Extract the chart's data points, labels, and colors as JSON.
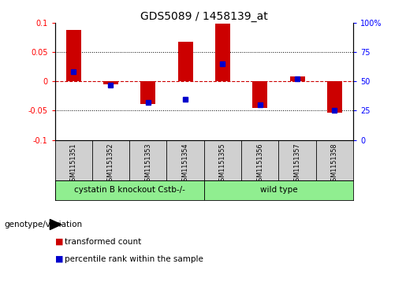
{
  "title": "GDS5089 / 1458139_at",
  "samples": [
    "GSM1151351",
    "GSM1151352",
    "GSM1151353",
    "GSM1151354",
    "GSM1151355",
    "GSM1151356",
    "GSM1151357",
    "GSM1151358"
  ],
  "transformed_count": [
    0.088,
    -0.005,
    -0.038,
    0.068,
    0.099,
    -0.046,
    0.008,
    -0.053
  ],
  "percentile_rank": [
    0.58,
    0.47,
    0.32,
    0.35,
    0.65,
    0.3,
    0.52,
    0.25
  ],
  "groups": [
    {
      "label": "cystatin B knockout Cstb-/-",
      "samples": [
        0,
        1,
        2,
        3
      ],
      "color": "#90EE90"
    },
    {
      "label": "wild type",
      "samples": [
        4,
        5,
        6,
        7
      ],
      "color": "#90EE90"
    }
  ],
  "group_label_prefix": "genotype/variation",
  "ylim": [
    -0.1,
    0.1
  ],
  "yticks_left": [
    -0.1,
    -0.05,
    0,
    0.05,
    0.1
  ],
  "yticks_right": [
    0,
    25,
    50,
    75,
    100
  ],
  "bar_color": "#CC0000",
  "dot_color": "#0000CC",
  "legend_items": [
    "transformed count",
    "percentile rank within the sample"
  ],
  "legend_colors": [
    "#CC0000",
    "#0000CC"
  ],
  "sample_bg_color": "#d0d0d0",
  "zero_line_color": "#CC0000",
  "bar_width": 0.4
}
